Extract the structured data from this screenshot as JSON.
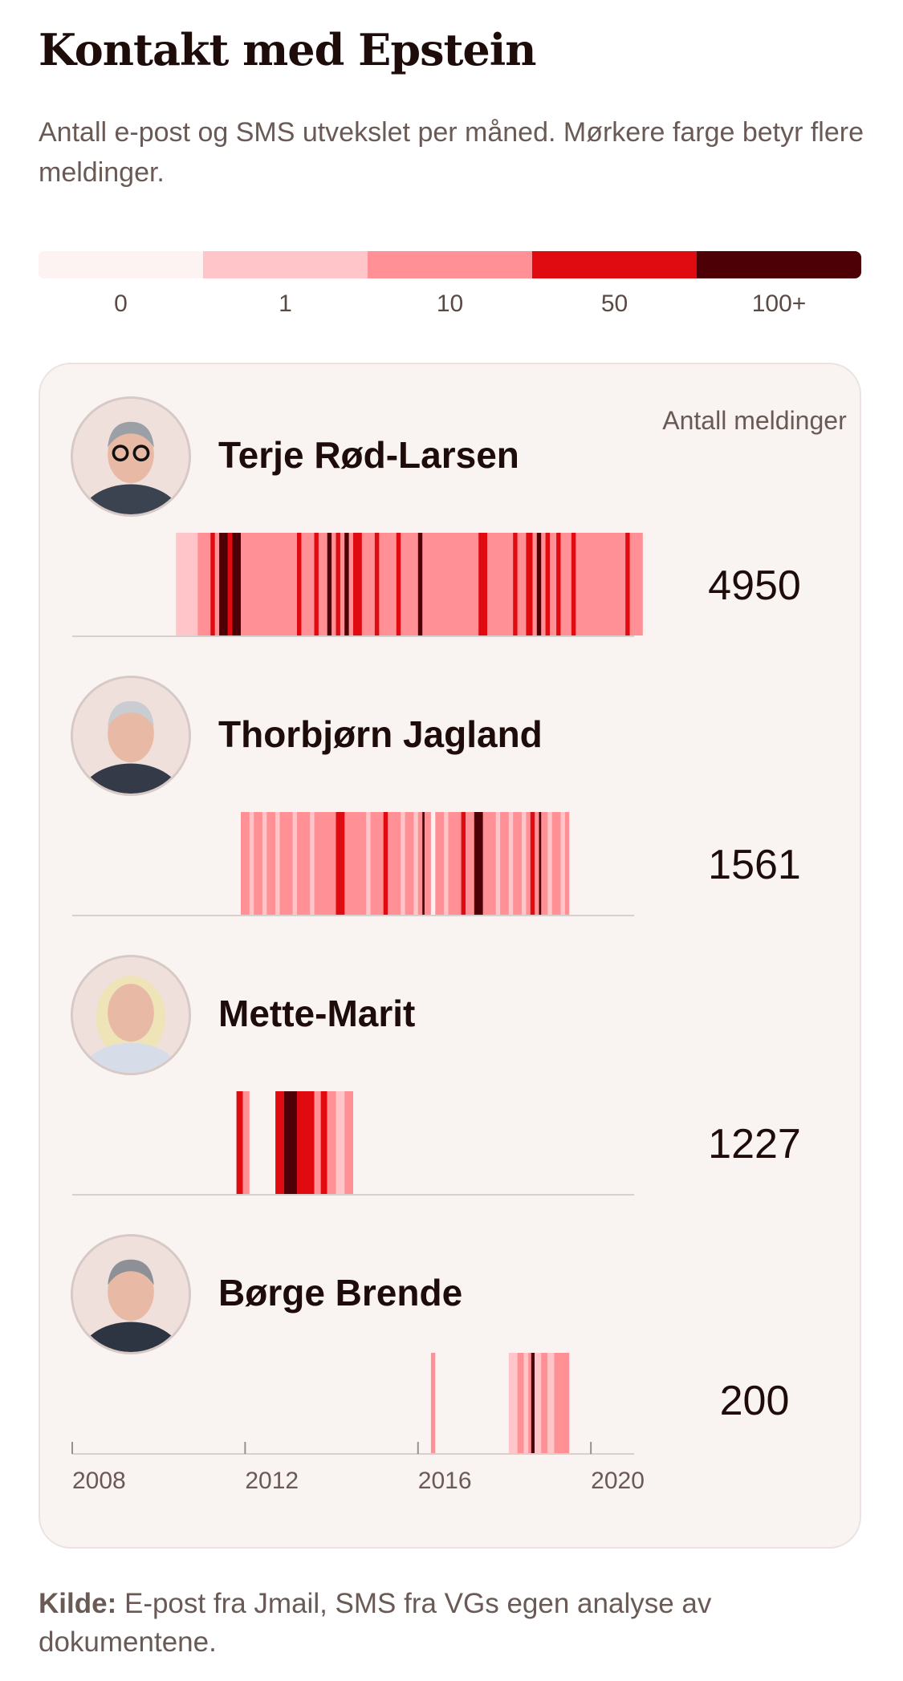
{
  "title": "Kontakt med Epstein",
  "subtitle": "Antall e-post og SMS utvekslet per måned. Mørkere farge betyr flere meldinger.",
  "legend": {
    "colors": [
      "#fdf3f3",
      "#ffc5c8",
      "#ff9095",
      "#df0b10",
      "#4d0005"
    ],
    "labels": [
      "0",
      "1",
      "10",
      "50",
      "100+"
    ]
  },
  "count_header": "Antall meldinger",
  "source": {
    "label": "Kilde:",
    "text": "E-post fra Jmail, SMS fra VGs egen analyse av dokumentene."
  },
  "chart_data": {
    "type": "heatmap",
    "x_range": [
      2008,
      2021
    ],
    "x_ticks": [
      2008,
      2012,
      2016,
      2020
    ],
    "levels": [
      "0",
      "1",
      "10",
      "50",
      "100+"
    ],
    "rows": [
      {
        "name": "Terje Rød-Larsen",
        "count": "4950",
        "avatar": "terje-rod-larsen-portrait",
        "segments": [
          {
            "start": 2010.4,
            "end": 2010.9,
            "level": 1
          },
          {
            "start": 2010.9,
            "end": 2021.2,
            "level": 2
          },
          {
            "start": 2011.2,
            "end": 2011.3,
            "level": 3
          },
          {
            "start": 2011.4,
            "end": 2011.6,
            "level": 4
          },
          {
            "start": 2011.6,
            "end": 2011.7,
            "level": 3
          },
          {
            "start": 2011.7,
            "end": 2011.9,
            "level": 4
          },
          {
            "start": 2013.2,
            "end": 2013.3,
            "level": 3
          },
          {
            "start": 2013.6,
            "end": 2013.7,
            "level": 3
          },
          {
            "start": 2013.9,
            "end": 2014.0,
            "level": 4
          },
          {
            "start": 2014.1,
            "end": 2014.2,
            "level": 3
          },
          {
            "start": 2014.3,
            "end": 2014.4,
            "level": 4
          },
          {
            "start": 2014.5,
            "end": 2014.7,
            "level": 3
          },
          {
            "start": 2015.0,
            "end": 2015.1,
            "level": 3
          },
          {
            "start": 2015.5,
            "end": 2015.6,
            "level": 3
          },
          {
            "start": 2016.0,
            "end": 2016.1,
            "level": 4
          },
          {
            "start": 2017.4,
            "end": 2017.6,
            "level": 3
          },
          {
            "start": 2018.2,
            "end": 2018.3,
            "level": 3
          },
          {
            "start": 2018.5,
            "end": 2018.65,
            "level": 3
          },
          {
            "start": 2018.75,
            "end": 2018.85,
            "level": 4
          },
          {
            "start": 2018.95,
            "end": 2019.05,
            "level": 3
          },
          {
            "start": 2019.2,
            "end": 2019.3,
            "level": 3
          },
          {
            "start": 2019.55,
            "end": 2019.65,
            "level": 3
          },
          {
            "start": 2020.8,
            "end": 2020.9,
            "level": 3
          }
        ]
      },
      {
        "name": "Thorbjørn Jagland",
        "count": "1561",
        "avatar": "thorbjorn-jagland-portrait",
        "segments": [
          {
            "start": 2011.9,
            "end": 2019.5,
            "level": 2
          },
          {
            "start": 2012.1,
            "end": 2012.2,
            "level": 1
          },
          {
            "start": 2012.4,
            "end": 2012.5,
            "level": 1
          },
          {
            "start": 2012.7,
            "end": 2012.8,
            "level": 1
          },
          {
            "start": 2013.1,
            "end": 2013.2,
            "level": 1
          },
          {
            "start": 2013.5,
            "end": 2013.6,
            "level": 1
          },
          {
            "start": 2014.1,
            "end": 2014.3,
            "level": 3
          },
          {
            "start": 2014.8,
            "end": 2014.9,
            "level": 1
          },
          {
            "start": 2015.2,
            "end": 2015.3,
            "level": 3
          },
          {
            "start": 2015.6,
            "end": 2015.7,
            "level": 1
          },
          {
            "start": 2015.9,
            "end": 2016.0,
            "level": 1
          },
          {
            "start": 2016.1,
            "end": 2016.15,
            "level": 4
          },
          {
            "start": 2016.3,
            "end": 2016.4,
            "level": 0
          },
          {
            "start": 2016.6,
            "end": 2016.7,
            "level": 1
          },
          {
            "start": 2017.0,
            "end": 2017.1,
            "level": 3
          },
          {
            "start": 2017.3,
            "end": 2017.5,
            "level": 4
          },
          {
            "start": 2017.8,
            "end": 2017.9,
            "level": 1
          },
          {
            "start": 2018.1,
            "end": 2018.2,
            "level": 1
          },
          {
            "start": 2018.4,
            "end": 2018.5,
            "level": 1
          },
          {
            "start": 2018.6,
            "end": 2018.7,
            "level": 3
          },
          {
            "start": 2018.8,
            "end": 2018.85,
            "level": 4
          },
          {
            "start": 2019.0,
            "end": 2019.1,
            "level": 1
          },
          {
            "start": 2019.3,
            "end": 2019.4,
            "level": 1
          }
        ]
      },
      {
        "name": "Mette-Marit",
        "count": "1227",
        "avatar": "mette-marit-portrait",
        "segments": [
          {
            "start": 2011.8,
            "end": 2011.95,
            "level": 3
          },
          {
            "start": 2011.95,
            "end": 2012.1,
            "level": 2
          },
          {
            "start": 2012.7,
            "end": 2012.9,
            "level": 3
          },
          {
            "start": 2012.9,
            "end": 2013.2,
            "level": 4
          },
          {
            "start": 2013.2,
            "end": 2013.6,
            "level": 3
          },
          {
            "start": 2013.6,
            "end": 2013.75,
            "level": 2
          },
          {
            "start": 2013.75,
            "end": 2013.9,
            "level": 3
          },
          {
            "start": 2013.9,
            "end": 2014.1,
            "level": 2
          },
          {
            "start": 2014.1,
            "end": 2014.3,
            "level": 1
          },
          {
            "start": 2014.3,
            "end": 2014.5,
            "level": 2
          }
        ]
      },
      {
        "name": "Børge Brende",
        "count": "200",
        "avatar": "borge-brende-portrait",
        "segments": [
          {
            "start": 2016.3,
            "end": 2016.4,
            "level": 2
          },
          {
            "start": 2018.1,
            "end": 2018.3,
            "level": 1
          },
          {
            "start": 2018.3,
            "end": 2018.45,
            "level": 2
          },
          {
            "start": 2018.45,
            "end": 2018.55,
            "level": 1
          },
          {
            "start": 2018.55,
            "end": 2018.62,
            "level": 2
          },
          {
            "start": 2018.62,
            "end": 2018.7,
            "level": 4
          },
          {
            "start": 2018.7,
            "end": 2018.85,
            "level": 1
          },
          {
            "start": 2018.85,
            "end": 2019.0,
            "level": 2
          },
          {
            "start": 2019.0,
            "end": 2019.15,
            "level": 1
          },
          {
            "start": 2019.15,
            "end": 2019.5,
            "level": 2
          }
        ]
      }
    ]
  }
}
